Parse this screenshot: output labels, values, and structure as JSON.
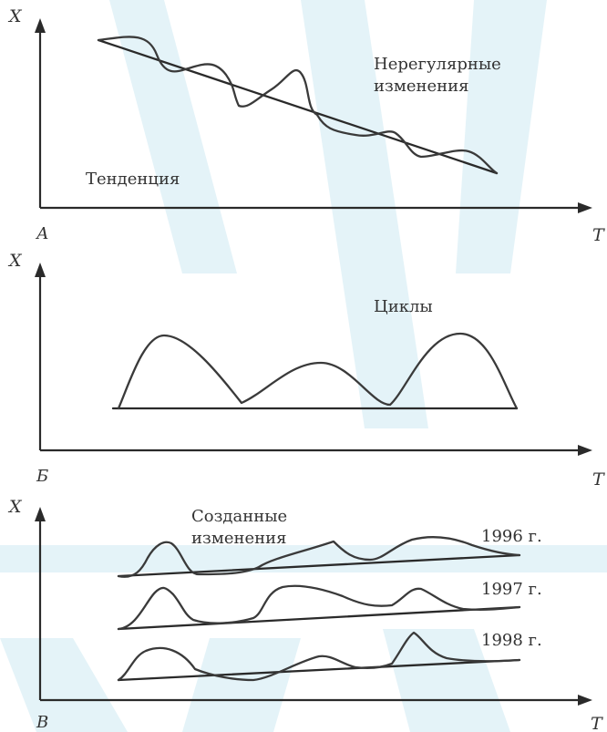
{
  "panels": {
    "a": {
      "y_label": "X",
      "x_label": "T",
      "letter": "А",
      "labels": {
        "trend": "Тенденция",
        "irregular_line1": "Нерегулярные",
        "irregular_line2": "изменения"
      }
    },
    "b": {
      "y_label": "X",
      "x_label": "T",
      "letter": "Б",
      "labels": {
        "cycles": "Циклы"
      }
    },
    "c": {
      "y_label": "X",
      "x_label": "T",
      "letter": "В",
      "labels": {
        "created_line1": "Созданные",
        "created_line2": "изменения",
        "year_1996": "1996 г.",
        "year_1997": "1997 г.",
        "year_1998": "1998 г."
      }
    }
  },
  "colors": {
    "ink": "#333333",
    "watermark": "#cfe9f2"
  }
}
